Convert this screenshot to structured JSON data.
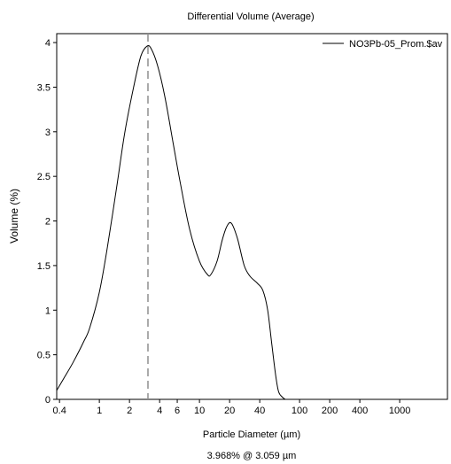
{
  "chart_data": {
    "type": "line",
    "title": "Differential Volume (Average)",
    "xlabel": "Particle Diameter (µm)",
    "ylabel": "Volume (%)",
    "x_scale": "log",
    "xlim": [
      0.375,
      3000
    ],
    "ylim": [
      0,
      4.1
    ],
    "x_ticks": [
      {
        "value": 0.4,
        "label": "0.4"
      },
      {
        "value": 1,
        "label": "1"
      },
      {
        "value": 2,
        "label": "2"
      },
      {
        "value": 4,
        "label": "4"
      },
      {
        "value": 6,
        "label": "6"
      },
      {
        "value": 10,
        "label": "10"
      },
      {
        "value": 20,
        "label": "20"
      },
      {
        "value": 40,
        "label": "40"
      },
      {
        "value": 100,
        "label": "100"
      },
      {
        "value": 200,
        "label": "200"
      },
      {
        "value": 400,
        "label": "400"
      },
      {
        "value": 1000,
        "label": "1000"
      }
    ],
    "y_ticks": [
      {
        "value": 0,
        "label": "0"
      },
      {
        "value": 0.5,
        "label": "0.5"
      },
      {
        "value": 1,
        "label": "1"
      },
      {
        "value": 1.5,
        "label": "1.5"
      },
      {
        "value": 2,
        "label": "2"
      },
      {
        "value": 2.5,
        "label": "2.5"
      },
      {
        "value": 3,
        "label": "3"
      },
      {
        "value": 3.5,
        "label": "3.5"
      },
      {
        "value": 4,
        "label": "4"
      }
    ],
    "grid": false,
    "legend_position": "top-right",
    "series": [
      {
        "name": "NO3Pb-05_Prom.$av",
        "color": "#000000",
        "points": [
          [
            0.375,
            0.1
          ],
          [
            0.45,
            0.25
          ],
          [
            0.55,
            0.42
          ],
          [
            0.7,
            0.65
          ],
          [
            0.8,
            0.8
          ],
          [
            1.0,
            1.2
          ],
          [
            1.2,
            1.7
          ],
          [
            1.5,
            2.4
          ],
          [
            1.8,
            3.0
          ],
          [
            2.2,
            3.5
          ],
          [
            2.6,
            3.85
          ],
          [
            3.0,
            3.96
          ],
          [
            3.3,
            3.93
          ],
          [
            3.8,
            3.75
          ],
          [
            4.5,
            3.4
          ],
          [
            5.5,
            2.85
          ],
          [
            6.5,
            2.4
          ],
          [
            8.0,
            1.9
          ],
          [
            10.0,
            1.55
          ],
          [
            12.0,
            1.4
          ],
          [
            13.0,
            1.4
          ],
          [
            15.0,
            1.55
          ],
          [
            17.0,
            1.8
          ],
          [
            19.0,
            1.95
          ],
          [
            21.0,
            1.97
          ],
          [
            24.0,
            1.8
          ],
          [
            28.0,
            1.5
          ],
          [
            32.0,
            1.38
          ],
          [
            38.0,
            1.3
          ],
          [
            43.0,
            1.22
          ],
          [
            48.0,
            1.0
          ],
          [
            53.0,
            0.6
          ],
          [
            58.0,
            0.25
          ],
          [
            62.0,
            0.08
          ],
          [
            68.0,
            0.02
          ],
          [
            72.0,
            0.0
          ]
        ]
      }
    ],
    "marker": {
      "x": 3.059,
      "style": "dashed",
      "color": "#909090"
    },
    "annotation": "3.968% @ 3.059 µm"
  }
}
